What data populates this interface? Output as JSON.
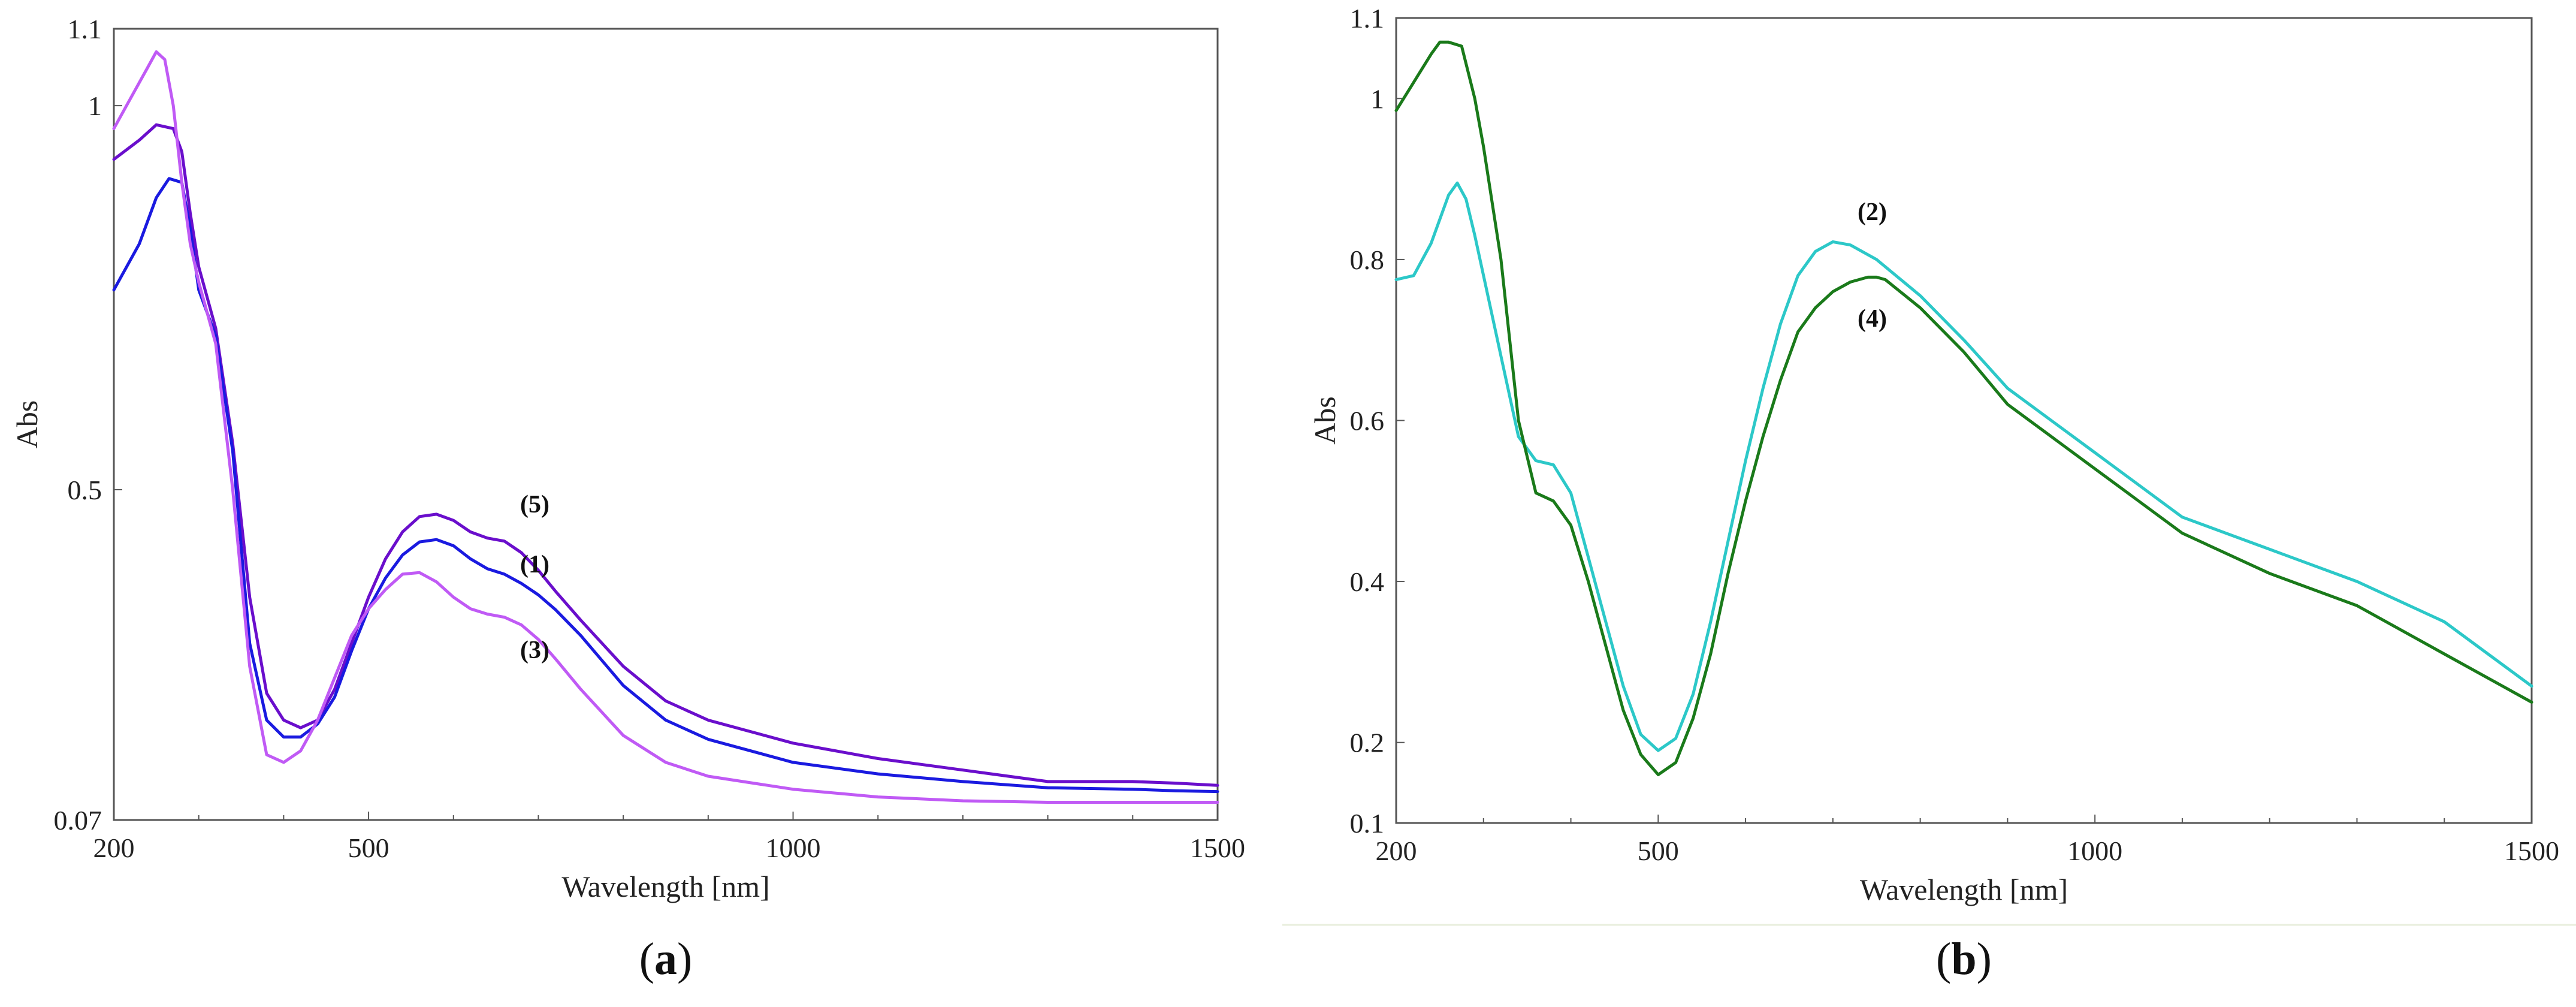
{
  "figure": {
    "divider_color": "#e8eedc"
  },
  "chart_data": [
    {
      "id": "a",
      "type": "line",
      "panel_label": "a",
      "xlabel": "Wavelength [nm]",
      "ylabel": "Abs",
      "xlim": [
        200,
        1500
      ],
      "ylim": [
        0.07,
        1.1
      ],
      "xticks": [
        200,
        500,
        1000,
        1500
      ],
      "yticks": [
        0.07,
        0.5,
        1,
        1.1
      ],
      "ytick_labels": [
        "0.07",
        "0.5",
        "1",
        "1.1"
      ],
      "grid": false,
      "series": [
        {
          "label": "(5)",
          "color": "#6a0ecc",
          "x": [
            200,
            230,
            250,
            270,
            280,
            290,
            300,
            320,
            340,
            360,
            380,
            400,
            420,
            440,
            460,
            480,
            500,
            520,
            540,
            560,
            580,
            600,
            620,
            640,
            660,
            680,
            700,
            720,
            750,
            800,
            850,
            900,
            1000,
            1100,
            1200,
            1300,
            1400,
            1450,
            1500
          ],
          "y": [
            0.93,
            0.955,
            0.975,
            0.97,
            0.94,
            0.86,
            0.79,
            0.71,
            0.56,
            0.36,
            0.235,
            0.2,
            0.19,
            0.2,
            0.24,
            0.3,
            0.36,
            0.41,
            0.445,
            0.465,
            0.468,
            0.46,
            0.445,
            0.437,
            0.433,
            0.418,
            0.395,
            0.368,
            0.33,
            0.27,
            0.225,
            0.2,
            0.17,
            0.15,
            0.135,
            0.12,
            0.12,
            0.118,
            0.115
          ]
        },
        {
          "label": "(1)",
          "color": "#1a1ae0",
          "x": [
            200,
            230,
            250,
            265,
            280,
            290,
            300,
            320,
            340,
            360,
            380,
            400,
            420,
            440,
            460,
            480,
            500,
            520,
            540,
            560,
            580,
            600,
            620,
            640,
            660,
            680,
            700,
            720,
            750,
            800,
            850,
            900,
            1000,
            1100,
            1200,
            1300,
            1400,
            1450,
            1500
          ],
          "y": [
            0.76,
            0.82,
            0.88,
            0.905,
            0.9,
            0.84,
            0.76,
            0.7,
            0.55,
            0.3,
            0.2,
            0.178,
            0.178,
            0.195,
            0.23,
            0.29,
            0.345,
            0.385,
            0.415,
            0.432,
            0.435,
            0.427,
            0.41,
            0.397,
            0.39,
            0.378,
            0.363,
            0.344,
            0.31,
            0.245,
            0.2,
            0.175,
            0.145,
            0.13,
            0.12,
            0.112,
            0.11,
            0.108,
            0.107
          ]
        },
        {
          "label": "(3)",
          "color": "#c05af5",
          "x": [
            200,
            220,
            240,
            250,
            260,
            270,
            280,
            290,
            300,
            320,
            340,
            360,
            380,
            400,
            420,
            440,
            460,
            480,
            500,
            520,
            540,
            560,
            580,
            600,
            620,
            640,
            660,
            680,
            700,
            720,
            750,
            800,
            850,
            900,
            1000,
            1100,
            1200,
            1300,
            1400,
            1500
          ],
          "y": [
            0.97,
            1.01,
            1.05,
            1.07,
            1.06,
            1.0,
            0.9,
            0.82,
            0.77,
            0.69,
            0.5,
            0.27,
            0.155,
            0.145,
            0.16,
            0.2,
            0.255,
            0.31,
            0.345,
            0.37,
            0.39,
            0.392,
            0.38,
            0.36,
            0.345,
            0.338,
            0.334,
            0.324,
            0.305,
            0.28,
            0.24,
            0.18,
            0.145,
            0.127,
            0.11,
            0.1,
            0.095,
            0.093,
            0.093,
            0.093
          ]
        }
      ]
    },
    {
      "id": "b",
      "type": "line",
      "panel_label": "b",
      "xlabel": "Wavelength [nm]",
      "ylabel": "Abs",
      "xlim": [
        200,
        1500
      ],
      "ylim": [
        0.1,
        1.1
      ],
      "xticks": [
        200,
        500,
        1000,
        1500
      ],
      "yticks": [
        0.1,
        0.2,
        0.4,
        0.6,
        0.8,
        1,
        1.1
      ],
      "ytick_labels": [
        "0.1",
        "0.2",
        "0.4",
        "0.6",
        "0.8",
        "1",
        "1.1"
      ],
      "grid": false,
      "series": [
        {
          "label": "(2)",
          "color": "#2cc8c8",
          "x": [
            200,
            220,
            240,
            260,
            270,
            280,
            290,
            300,
            320,
            340,
            360,
            380,
            400,
            420,
            440,
            460,
            480,
            500,
            520,
            540,
            560,
            580,
            600,
            620,
            640,
            660,
            680,
            700,
            720,
            750,
            800,
            850,
            900,
            1000,
            1100,
            1200,
            1300,
            1400,
            1500
          ],
          "y": [
            0.775,
            0.78,
            0.82,
            0.88,
            0.895,
            0.875,
            0.83,
            0.78,
            0.68,
            0.58,
            0.55,
            0.545,
            0.51,
            0.43,
            0.35,
            0.27,
            0.21,
            0.19,
            0.205,
            0.26,
            0.35,
            0.45,
            0.55,
            0.64,
            0.72,
            0.78,
            0.81,
            0.822,
            0.818,
            0.8,
            0.755,
            0.7,
            0.64,
            0.56,
            0.48,
            0.44,
            0.4,
            0.35,
            0.27
          ]
        },
        {
          "label": "(4)",
          "color": "#1a7a1a",
          "x": [
            200,
            220,
            240,
            250,
            260,
            275,
            290,
            300,
            320,
            340,
            360,
            380,
            400,
            420,
            440,
            460,
            480,
            500,
            520,
            540,
            560,
            580,
            600,
            620,
            640,
            660,
            680,
            700,
            720,
            740,
            750,
            760,
            800,
            850,
            900,
            1000,
            1100,
            1200,
            1300,
            1400,
            1500
          ],
          "y": [
            0.985,
            1.02,
            1.055,
            1.07,
            1.07,
            1.065,
            1.0,
            0.94,
            0.8,
            0.6,
            0.51,
            0.5,
            0.47,
            0.4,
            0.32,
            0.24,
            0.185,
            0.16,
            0.175,
            0.23,
            0.31,
            0.41,
            0.5,
            0.58,
            0.65,
            0.71,
            0.74,
            0.76,
            0.772,
            0.778,
            0.778,
            0.775,
            0.74,
            0.685,
            0.62,
            0.54,
            0.46,
            0.41,
            0.37,
            0.31,
            0.25
          ]
        }
      ]
    }
  ]
}
